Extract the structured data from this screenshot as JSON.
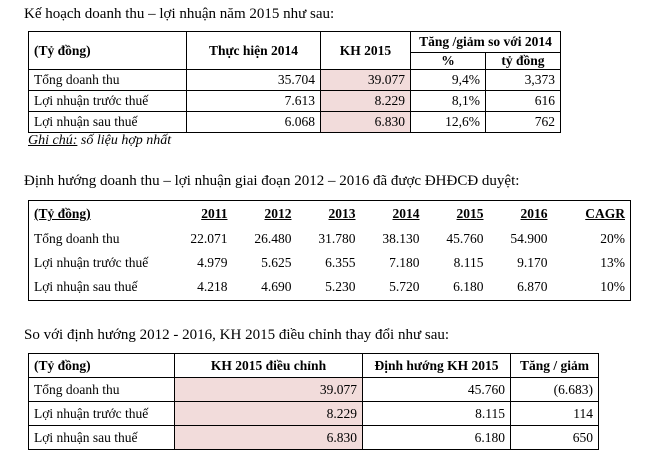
{
  "section1": {
    "caption": "Kế hoạch doanh thu – lợi nhuận năm 2015 như sau:",
    "headers": {
      "unit": "(Tỷ đồng)",
      "actual_2014": "Thực hiện 2014",
      "plan_2015": "KH 2015",
      "change": "Tăng /giảm so với 2014",
      "percent": "%",
      "amount": "tỷ đồng"
    },
    "rows": [
      {
        "label": "Tổng doanh thu",
        "actual_2014": "35.704",
        "plan_2015": "39.077",
        "percent": "9,4%",
        "amount": "3,373"
      },
      {
        "label": "Lợi nhuận trước thuế",
        "actual_2014": "7.613",
        "plan_2015": "8.229",
        "percent": "8,1%",
        "amount": "616"
      },
      {
        "label": "Lợi nhuận sau thuế",
        "actual_2014": "6.068",
        "plan_2015": "6.830",
        "percent": "12,6%",
        "amount": "762"
      }
    ],
    "note_label": "Ghi chú:",
    "note_text": " số liệu hợp nhất"
  },
  "section2": {
    "caption": "Định hướng doanh thu – lợi nhuận giai đoạn 2012 – 2016 đã được ĐHĐCĐ duyệt:",
    "headers": [
      "(Tỷ đồng)",
      "2011",
      "2012",
      "2013",
      "2014",
      "2015",
      "2016",
      "CAGR"
    ],
    "rows": [
      {
        "label": "Tổng doanh thu",
        "values": [
          "22.071",
          "26.480",
          "31.780",
          "38.130",
          "45.760",
          "54.900",
          "20%"
        ]
      },
      {
        "label": "Lợi nhuận trước thuế",
        "values": [
          "4.979",
          "5.625",
          "6.355",
          "7.180",
          "8.115",
          "9.170",
          "13%"
        ]
      },
      {
        "label": "Lợi nhuận sau thuế",
        "values": [
          "4.218",
          "4.690",
          "5.230",
          "5.720",
          "6.180",
          "6.870",
          "10%"
        ]
      }
    ]
  },
  "section3": {
    "caption": "So với định hướng 2012 - 2016, KH 2015 điều chỉnh thay đổi như sau:",
    "headers": {
      "unit": "(Tỷ đồng)",
      "adjusted": "KH 2015 điều chỉnh",
      "orientation": "Định hướng KH 2015",
      "change": "Tăng / giảm"
    },
    "rows": [
      {
        "label": "Tổng doanh thu",
        "adjusted": "39.077",
        "orientation": "45.760",
        "change": "(6.683)"
      },
      {
        "label": "Lợi nhuận trước thuế",
        "adjusted": "8.229",
        "orientation": "8.115",
        "change": "114"
      },
      {
        "label": "Lợi nhuận sau thuế",
        "adjusted": "6.830",
        "orientation": "6.180",
        "change": "650"
      }
    ]
  }
}
